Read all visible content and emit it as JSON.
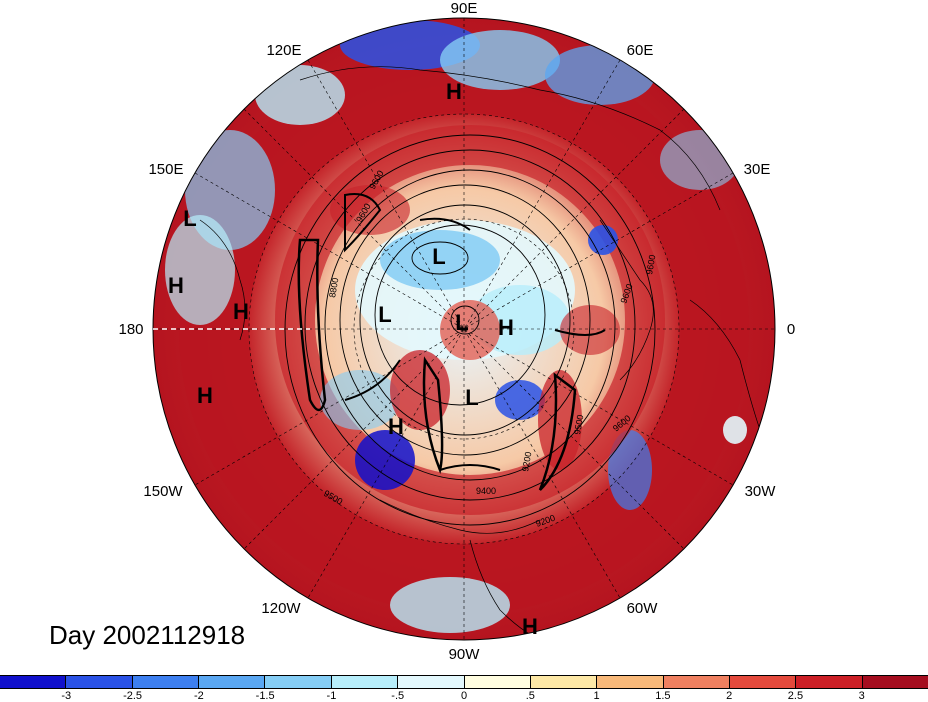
{
  "map": {
    "projection": "polar stereographic (north)",
    "longitude_labels": {
      "lon_90e": "90E",
      "lon_60e": "60E",
      "lon_120e": "120E",
      "lon_30e": "30E",
      "lon_150e": "150E",
      "lon_180": "180",
      "lon_0": "0",
      "lon_150w": "150W",
      "lon_30w": "30W",
      "lon_120w": "120W",
      "lon_60w": "60W",
      "lon_90w": "90W"
    },
    "pressure_markers": [
      {
        "name": "marker-h-north",
        "label": "H"
      },
      {
        "name": "marker-l-west-1",
        "label": "L"
      },
      {
        "name": "marker-h-west-1",
        "label": "H"
      },
      {
        "name": "marker-h-west-2",
        "label": "H"
      },
      {
        "name": "marker-h-southwest",
        "label": "H"
      },
      {
        "name": "marker-l-center-north",
        "label": "L"
      },
      {
        "name": "marker-l-center-west",
        "label": "L"
      },
      {
        "name": "marker-l-center",
        "label": "L"
      },
      {
        "name": "marker-h-center",
        "label": "H"
      },
      {
        "name": "marker-l-center-south",
        "label": "L"
      },
      {
        "name": "marker-h-center-south",
        "label": "H"
      },
      {
        "name": "marker-h-bottom",
        "label": "H"
      }
    ],
    "contour_labels": [
      "9600",
      "8800",
      "9600",
      "9600",
      "9600",
      "9400",
      "9500",
      "9200",
      "9500",
      "9600",
      "9200"
    ]
  },
  "day_label": "Day 2002112918",
  "colorbar": {
    "colors": [
      "#1010cc",
      "#2a52e6",
      "#3d7ff0",
      "#5aa7f2",
      "#85cdf5",
      "#b7eefb",
      "#e3f8fd",
      "#fffde0",
      "#fde8a6",
      "#f8b97a",
      "#ef8060",
      "#e44a3c",
      "#cc1f26",
      "#a50d1f"
    ],
    "tick_labels": [
      "-3",
      "-2.5",
      "-2",
      "-1.5",
      "-1",
      "-.5",
      "0",
      ".5",
      "1",
      "1.5",
      "2",
      "2.5",
      "3"
    ]
  }
}
